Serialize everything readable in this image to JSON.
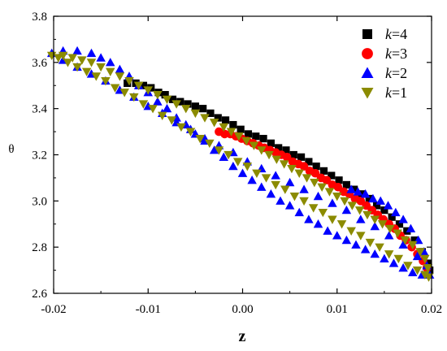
{
  "chart_data": {
    "type": "scatter",
    "title": "",
    "xlabel": "z",
    "ylabel": "θ",
    "xlim": [
      -0.02,
      0.02
    ],
    "ylim": [
      2.6,
      3.8
    ],
    "x_ticks": [
      "-0.02",
      "-0.01",
      "0.00",
      "0.01",
      "0.02"
    ],
    "y_ticks": [
      "2.6",
      "2.8",
      "3.0",
      "3.2",
      "3.4",
      "3.6",
      "3.8"
    ],
    "grid": false,
    "legend_position": "top-right",
    "series": [
      {
        "name": "k=4",
        "name_italic": "k",
        "name_rest": "=4",
        "marker": "square",
        "color": "#000000",
        "points": [
          [
            -0.0122,
            3.51
          ],
          [
            -0.0113,
            3.51
          ],
          [
            -0.0105,
            3.5
          ],
          [
            -0.0097,
            3.49
          ],
          [
            -0.0089,
            3.47
          ],
          [
            -0.0082,
            3.46
          ],
          [
            -0.0074,
            3.44
          ],
          [
            -0.0066,
            3.43
          ],
          [
            -0.0058,
            3.42
          ],
          [
            -0.005,
            3.41
          ],
          [
            -0.0042,
            3.4
          ],
          [
            -0.0034,
            3.38
          ],
          [
            -0.0026,
            3.36
          ],
          [
            -0.0018,
            3.35
          ],
          [
            -0.001,
            3.33
          ],
          [
            -0.0002,
            3.31
          ],
          [
            0.0006,
            3.29
          ],
          [
            0.0014,
            3.28
          ],
          [
            0.0022,
            3.27
          ],
          [
            0.003,
            3.25
          ],
          [
            0.0038,
            3.23
          ],
          [
            0.0046,
            3.22
          ],
          [
            0.0054,
            3.2
          ],
          [
            0.0062,
            3.19
          ],
          [
            0.007,
            3.17
          ],
          [
            0.0078,
            3.15
          ],
          [
            0.0086,
            3.13
          ],
          [
            0.0094,
            3.11
          ],
          [
            0.0102,
            3.09
          ],
          [
            0.011,
            3.07
          ],
          [
            0.0118,
            3.05
          ],
          [
            0.0126,
            3.03
          ],
          [
            0.0134,
            3.01
          ],
          [
            0.0142,
            2.98
          ],
          [
            0.015,
            2.96
          ],
          [
            0.0158,
            2.93
          ],
          [
            0.0166,
            2.9
          ],
          [
            0.0174,
            2.87
          ],
          [
            0.0182,
            2.83
          ],
          [
            0.019,
            2.78
          ],
          [
            0.0196,
            2.73
          ],
          [
            0.0198,
            2.7
          ]
        ]
      },
      {
        "name": "k=3",
        "name_italic": "k",
        "name_rest": "=3",
        "marker": "circle",
        "color": "#ff0000",
        "points": [
          [
            -0.0025,
            3.3
          ],
          [
            -0.0019,
            3.29
          ],
          [
            -0.0013,
            3.29
          ],
          [
            -0.0007,
            3.28
          ],
          [
            -0.0001,
            3.27
          ],
          [
            0.0005,
            3.26
          ],
          [
            0.0011,
            3.25
          ],
          [
            0.0017,
            3.24
          ],
          [
            0.0023,
            3.23
          ],
          [
            0.0029,
            3.22
          ],
          [
            0.0035,
            3.21
          ],
          [
            0.0041,
            3.2
          ],
          [
            0.0047,
            3.19
          ],
          [
            0.0053,
            3.17
          ],
          [
            0.0059,
            3.16
          ],
          [
            0.0065,
            3.15
          ],
          [
            0.0071,
            3.13
          ],
          [
            0.0077,
            3.12
          ],
          [
            0.0083,
            3.1
          ],
          [
            0.0089,
            3.09
          ],
          [
            0.0095,
            3.07
          ],
          [
            0.0101,
            3.06
          ],
          [
            0.0107,
            3.04
          ],
          [
            0.0113,
            3.03
          ],
          [
            0.0119,
            3.01
          ],
          [
            0.0125,
            3.0
          ],
          [
            0.0131,
            2.98
          ],
          [
            0.0137,
            2.96
          ],
          [
            0.0143,
            2.94
          ],
          [
            0.0149,
            2.92
          ],
          [
            0.0155,
            2.9
          ],
          [
            0.0161,
            2.88
          ],
          [
            0.0167,
            2.85
          ],
          [
            0.0173,
            2.83
          ],
          [
            0.0179,
            2.8
          ],
          [
            0.0185,
            2.77
          ],
          [
            0.0191,
            2.74
          ],
          [
            0.0195,
            2.71
          ]
        ]
      },
      {
        "name": "k=2",
        "name_italic": "k",
        "name_rest": "=2",
        "marker": "triangle-up",
        "color": "#0000ff",
        "points": [
          [
            -0.0202,
            3.64
          ],
          [
            -0.019,
            3.61
          ],
          [
            -0.0175,
            3.58
          ],
          [
            -0.016,
            3.55
          ],
          [
            -0.0145,
            3.52
          ],
          [
            -0.013,
            3.48
          ],
          [
            -0.0115,
            3.45
          ],
          [
            -0.01,
            3.41
          ],
          [
            -0.0085,
            3.38
          ],
          [
            -0.007,
            3.34
          ],
          [
            -0.0055,
            3.31
          ],
          [
            -0.004,
            3.27
          ],
          [
            -0.0025,
            3.24
          ],
          [
            -0.001,
            3.21
          ],
          [
            0.0005,
            3.17
          ],
          [
            0.002,
            3.14
          ],
          [
            0.0035,
            3.11
          ],
          [
            0.005,
            3.08
          ],
          [
            0.0065,
            3.05
          ],
          [
            0.008,
            3.02
          ],
          [
            0.0095,
            2.99
          ],
          [
            0.011,
            2.96
          ],
          [
            0.0125,
            2.92
          ],
          [
            0.014,
            2.89
          ],
          [
            0.0155,
            2.85
          ],
          [
            0.017,
            2.81
          ],
          [
            0.0185,
            2.76
          ],
          [
            0.0195,
            2.72
          ],
          [
            0.0115,
            3.05
          ],
          [
            0.0122,
            3.04
          ],
          [
            0.013,
            3.03
          ],
          [
            0.0138,
            3.01
          ],
          [
            0.0146,
            3.0
          ],
          [
            0.0154,
            2.98
          ],
          [
            0.0162,
            2.95
          ],
          [
            0.017,
            2.92
          ],
          [
            0.0178,
            2.88
          ],
          [
            0.0186,
            2.83
          ],
          [
            0.0192,
            2.78
          ],
          [
            0.0198,
            2.68
          ],
          [
            0.019,
            2.68
          ],
          [
            0.018,
            2.69
          ],
          [
            0.017,
            2.71
          ],
          [
            0.016,
            2.73
          ],
          [
            0.015,
            2.75
          ],
          [
            0.014,
            2.77
          ],
          [
            0.013,
            2.79
          ],
          [
            0.012,
            2.81
          ],
          [
            0.011,
            2.83
          ],
          [
            0.01,
            2.85
          ],
          [
            0.009,
            2.87
          ],
          [
            0.008,
            2.9
          ],
          [
            0.007,
            2.92
          ],
          [
            0.006,
            2.95
          ],
          [
            0.005,
            2.98
          ],
          [
            0.004,
            3.0
          ],
          [
            0.003,
            3.03
          ],
          [
            0.002,
            3.06
          ],
          [
            0.001,
            3.09
          ],
          [
            0.0,
            3.12
          ],
          [
            -0.001,
            3.15
          ],
          [
            -0.002,
            3.19
          ],
          [
            -0.003,
            3.22
          ],
          [
            -0.004,
            3.26
          ],
          [
            -0.005,
            3.29
          ],
          [
            -0.006,
            3.33
          ],
          [
            -0.007,
            3.36
          ],
          [
            -0.008,
            3.4
          ],
          [
            -0.009,
            3.43
          ],
          [
            -0.01,
            3.47
          ],
          [
            -0.011,
            3.5
          ],
          [
            -0.012,
            3.54
          ],
          [
            -0.013,
            3.57
          ],
          [
            -0.014,
            3.6
          ],
          [
            -0.015,
            3.62
          ],
          [
            -0.016,
            3.64
          ],
          [
            -0.0175,
            3.65
          ],
          [
            -0.019,
            3.65
          ]
        ]
      },
      {
        "name": "k=1",
        "name_italic": "k",
        "name_rest": "=1",
        "marker": "triangle-down",
        "color": "#8b8b00",
        "points": [
          [
            -0.0202,
            3.63
          ],
          [
            -0.0195,
            3.62
          ],
          [
            -0.0185,
            3.6
          ],
          [
            -0.0175,
            3.58
          ],
          [
            -0.0165,
            3.56
          ],
          [
            -0.0155,
            3.54
          ],
          [
            -0.0145,
            3.52
          ],
          [
            -0.0135,
            3.49
          ],
          [
            -0.0125,
            3.47
          ],
          [
            -0.0115,
            3.45
          ],
          [
            -0.0105,
            3.42
          ],
          [
            -0.0095,
            3.4
          ],
          [
            -0.0085,
            3.37
          ],
          [
            -0.0075,
            3.35
          ],
          [
            -0.0065,
            3.32
          ],
          [
            -0.0055,
            3.3
          ],
          [
            -0.0045,
            3.27
          ],
          [
            -0.0035,
            3.25
          ],
          [
            -0.0025,
            3.22
          ],
          [
            -0.0015,
            3.2
          ],
          [
            -0.0005,
            3.17
          ],
          [
            0.0005,
            3.15
          ],
          [
            0.0015,
            3.12
          ],
          [
            0.0025,
            3.1
          ],
          [
            0.0035,
            3.07
          ],
          [
            0.0045,
            3.05
          ],
          [
            0.0055,
            3.02
          ],
          [
            0.0065,
            3.0
          ],
          [
            0.0075,
            2.97
          ],
          [
            0.0085,
            2.95
          ],
          [
            0.0095,
            2.92
          ],
          [
            0.0105,
            2.9
          ],
          [
            0.0115,
            2.87
          ],
          [
            0.0125,
            2.85
          ],
          [
            0.0135,
            2.82
          ],
          [
            0.0145,
            2.8
          ],
          [
            0.0155,
            2.77
          ],
          [
            0.0165,
            2.75
          ],
          [
            0.0175,
            2.72
          ],
          [
            0.0185,
            2.7
          ],
          [
            0.0193,
            2.68
          ],
          [
            0.0197,
            2.67
          ],
          [
            0.0196,
            2.71
          ],
          [
            0.0193,
            2.75
          ],
          [
            0.0188,
            2.78
          ],
          [
            0.018,
            2.81
          ],
          [
            0.0172,
            2.83
          ],
          [
            0.0164,
            2.86
          ],
          [
            0.0156,
            2.88
          ],
          [
            0.0148,
            2.9
          ],
          [
            0.014,
            2.92
          ],
          [
            0.0132,
            2.94
          ],
          [
            0.0124,
            2.96
          ],
          [
            0.0116,
            2.98
          ],
          [
            0.0108,
            3.0
          ],
          [
            0.01,
            3.02
          ],
          [
            0.0092,
            3.04
          ],
          [
            0.0084,
            3.06
          ],
          [
            0.0076,
            3.08
          ],
          [
            0.0068,
            3.1
          ],
          [
            0.006,
            3.12
          ],
          [
            0.0052,
            3.14
          ],
          [
            0.0044,
            3.16
          ],
          [
            0.0036,
            3.18
          ],
          [
            0.0028,
            3.2
          ],
          [
            0.002,
            3.22
          ],
          [
            0.0012,
            3.24
          ],
          [
            0.0004,
            3.26
          ],
          [
            -0.0004,
            3.28
          ],
          [
            -0.0012,
            3.3
          ],
          [
            -0.002,
            3.32
          ],
          [
            -0.003,
            3.34
          ],
          [
            -0.004,
            3.36
          ],
          [
            -0.005,
            3.38
          ],
          [
            -0.006,
            3.4
          ],
          [
            -0.007,
            3.42
          ],
          [
            -0.008,
            3.44
          ],
          [
            -0.009,
            3.46
          ],
          [
            -0.01,
            3.48
          ],
          [
            -0.011,
            3.5
          ],
          [
            -0.012,
            3.52
          ],
          [
            -0.013,
            3.54
          ],
          [
            -0.014,
            3.56
          ],
          [
            -0.015,
            3.58
          ],
          [
            -0.016,
            3.6
          ],
          [
            -0.017,
            3.61
          ],
          [
            -0.018,
            3.62
          ],
          [
            -0.019,
            3.63
          ]
        ]
      }
    ]
  }
}
